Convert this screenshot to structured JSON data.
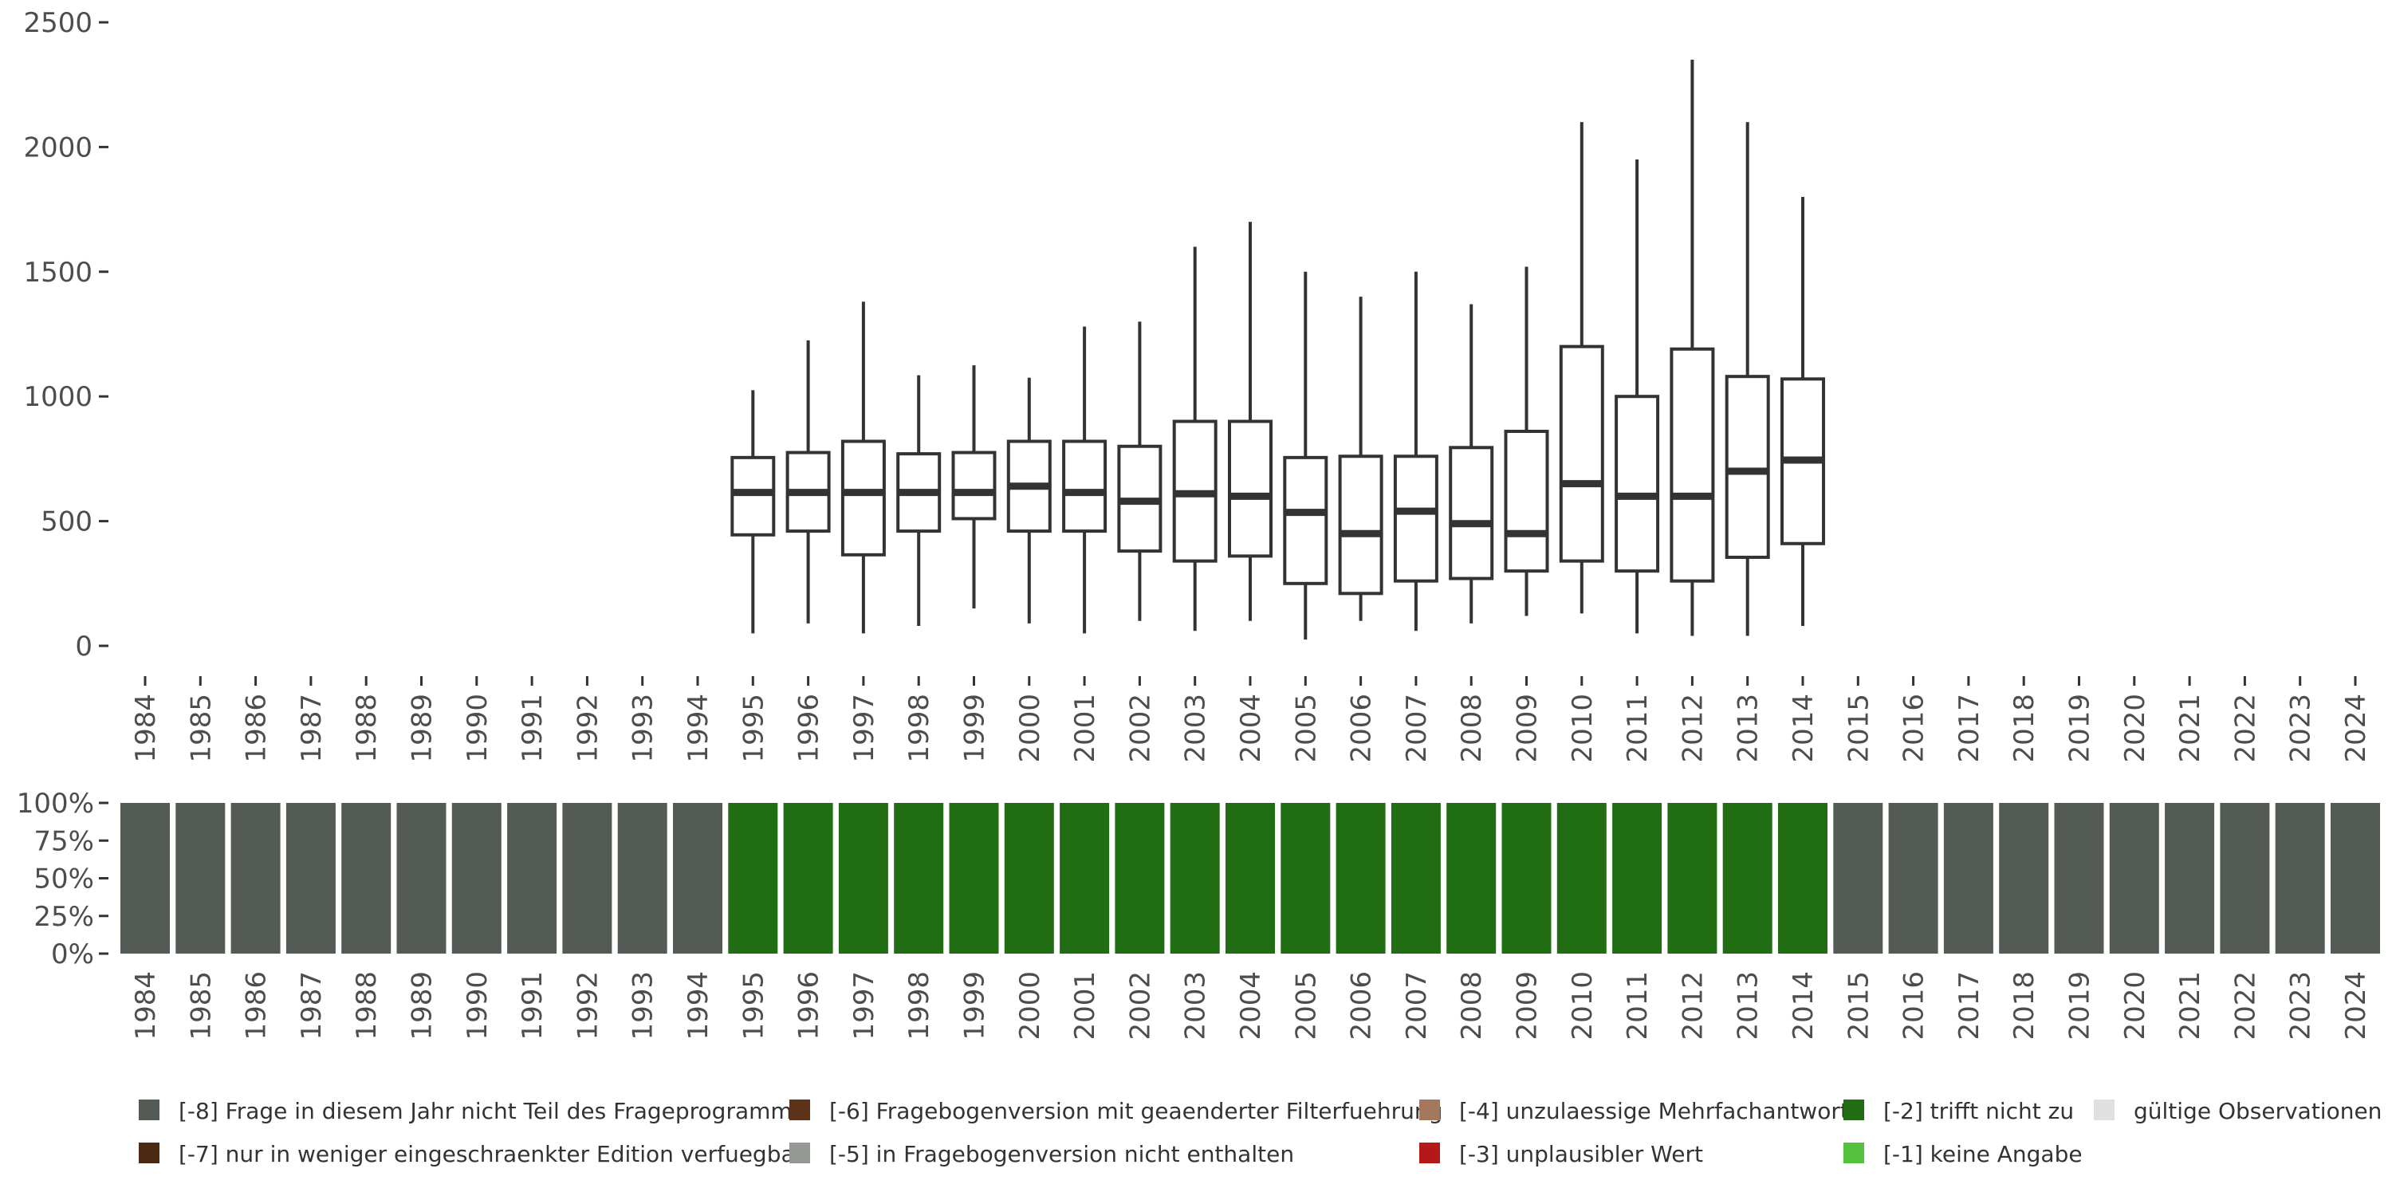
{
  "chart_data": [
    {
      "type": "boxplot",
      "title": "",
      "xlabel": "",
      "ylabel": "",
      "ylim": [
        0,
        2500
      ],
      "yticks": [
        0,
        500,
        1000,
        1500,
        2000,
        2500
      ],
      "categories": [
        "1984",
        "1985",
        "1986",
        "1987",
        "1988",
        "1989",
        "1990",
        "1991",
        "1992",
        "1993",
        "1994",
        "1995",
        "1996",
        "1997",
        "1998",
        "1999",
        "2000",
        "2001",
        "2002",
        "2003",
        "2004",
        "2005",
        "2006",
        "2007",
        "2008",
        "2009",
        "2010",
        "2011",
        "2012",
        "2013",
        "2014",
        "2015",
        "2016",
        "2017",
        "2018",
        "2019",
        "2020",
        "2021",
        "2022",
        "2023",
        "2024"
      ],
      "boxes": [
        {
          "year": "1995",
          "whisker_low": 50,
          "q1": 445,
          "median": 615,
          "q3": 755,
          "whisker_high": 1025
        },
        {
          "year": "1996",
          "whisker_low": 90,
          "q1": 460,
          "median": 615,
          "q3": 775,
          "whisker_high": 1225
        },
        {
          "year": "1997",
          "whisker_low": 50,
          "q1": 365,
          "median": 615,
          "q3": 820,
          "whisker_high": 1380
        },
        {
          "year": "1998",
          "whisker_low": 80,
          "q1": 460,
          "median": 615,
          "q3": 770,
          "whisker_high": 1085
        },
        {
          "year": "1999",
          "whisker_low": 150,
          "q1": 510,
          "median": 615,
          "q3": 775,
          "whisker_high": 1125
        },
        {
          "year": "2000",
          "whisker_low": 90,
          "q1": 460,
          "median": 640,
          "q3": 820,
          "whisker_high": 1075
        },
        {
          "year": "2001",
          "whisker_low": 50,
          "q1": 460,
          "median": 615,
          "q3": 820,
          "whisker_high": 1280
        },
        {
          "year": "2002",
          "whisker_low": 100,
          "q1": 380,
          "median": 580,
          "q3": 800,
          "whisker_high": 1300
        },
        {
          "year": "2003",
          "whisker_low": 60,
          "q1": 340,
          "median": 610,
          "q3": 900,
          "whisker_high": 1600
        },
        {
          "year": "2004",
          "whisker_low": 100,
          "q1": 360,
          "median": 600,
          "q3": 900,
          "whisker_high": 1700
        },
        {
          "year": "2005",
          "whisker_low": 25,
          "q1": 250,
          "median": 535,
          "q3": 755,
          "whisker_high": 1500
        },
        {
          "year": "2006",
          "whisker_low": 100,
          "q1": 210,
          "median": 450,
          "q3": 760,
          "whisker_high": 1400
        },
        {
          "year": "2007",
          "whisker_low": 60,
          "q1": 260,
          "median": 540,
          "q3": 760,
          "whisker_high": 1500
        },
        {
          "year": "2008",
          "whisker_low": 90,
          "q1": 270,
          "median": 490,
          "q3": 795,
          "whisker_high": 1370
        },
        {
          "year": "2009",
          "whisker_low": 120,
          "q1": 300,
          "median": 450,
          "q3": 860,
          "whisker_high": 1520
        },
        {
          "year": "2010",
          "whisker_low": 130,
          "q1": 340,
          "median": 650,
          "q3": 1200,
          "whisker_high": 2100
        },
        {
          "year": "2011",
          "whisker_low": 50,
          "q1": 300,
          "median": 600,
          "q3": 1000,
          "whisker_high": 1950
        },
        {
          "year": "2012",
          "whisker_low": 40,
          "q1": 260,
          "median": 600,
          "q3": 1190,
          "whisker_high": 2350
        },
        {
          "year": "2013",
          "whisker_low": 40,
          "q1": 355,
          "median": 700,
          "q3": 1080,
          "whisker_high": 2100
        },
        {
          "year": "2014",
          "whisker_low": 80,
          "q1": 410,
          "median": 745,
          "q3": 1070,
          "whisker_high": 1800
        }
      ]
    },
    {
      "type": "bar",
      "stacked": true,
      "ylabel": "",
      "ylim": [
        0,
        100
      ],
      "yticks": [
        "0%",
        "25%",
        "50%",
        "75%",
        "100%"
      ],
      "categories": [
        "1984",
        "1985",
        "1986",
        "1987",
        "1988",
        "1989",
        "1990",
        "1991",
        "1992",
        "1993",
        "1994",
        "1995",
        "1996",
        "1997",
        "1998",
        "1999",
        "2000",
        "2001",
        "2002",
        "2003",
        "2004",
        "2005",
        "2006",
        "2007",
        "2008",
        "2009",
        "2010",
        "2011",
        "2012",
        "2013",
        "2014",
        "2015",
        "2016",
        "2017",
        "2018",
        "2019",
        "2020",
        "2021",
        "2022",
        "2023",
        "2024"
      ],
      "series": [
        {
          "name": "[-8] Frage in diesem Jahr nicht Teil des Frageprogramms",
          "color": "#545b55",
          "values": [
            100,
            100,
            100,
            100,
            100,
            100,
            100,
            100,
            100,
            100,
            100,
            0,
            0,
            0,
            0,
            0,
            0,
            0,
            0,
            0,
            0,
            0,
            0,
            0,
            0,
            0,
            0,
            0,
            0,
            0,
            0,
            100,
            100,
            100,
            100,
            100,
            100,
            100,
            100,
            100,
            100
          ]
        },
        {
          "name": "[-2] trifft nicht zu",
          "color": "#216d13",
          "values": [
            0,
            0,
            0,
            0,
            0,
            0,
            0,
            0,
            0,
            0,
            0,
            100,
            100,
            100,
            100,
            100,
            100,
            100,
            100,
            100,
            100,
            100,
            100,
            100,
            100,
            100,
            100,
            100,
            100,
            100,
            100,
            0,
            0,
            0,
            0,
            0,
            0,
            0,
            0,
            0,
            0
          ]
        }
      ]
    }
  ],
  "legend": {
    "items": [
      {
        "label": "[-8] Frage in diesem Jahr nicht Teil des Frageprogramms",
        "color": "#545b55"
      },
      {
        "label": "[-6] Fragebogenversion mit geaenderter Filterfuehrung",
        "color": "#5c3318"
      },
      {
        "label": "[-4] unzulaessige Mehrfachantwort",
        "color": "#a3785c"
      },
      {
        "label": "[-2] trifft nicht zu",
        "color": "#216d13"
      },
      {
        "label": "gültige Observationen",
        "color": "#e0e0e0"
      },
      {
        "label": "[-7] nur in weniger eingeschraenkter Edition verfuegbar",
        "color": "#4a2a12"
      },
      {
        "label": "[-5] in Fragebogenversion nicht enthalten",
        "color": "#949a93"
      },
      {
        "label": "[-3] unplausibler Wert",
        "color": "#b51818"
      },
      {
        "label": "[-1] keine Angabe",
        "color": "#55c23f"
      }
    ]
  }
}
